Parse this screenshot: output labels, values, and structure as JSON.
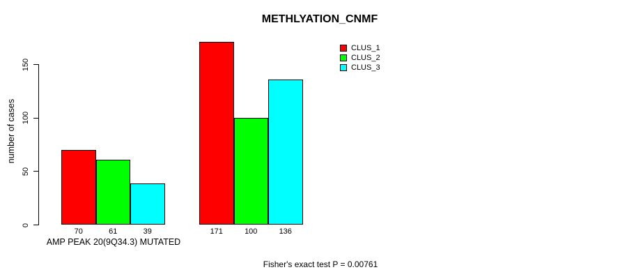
{
  "chart_data": {
    "type": "bar",
    "title": "METHLYATION_CNMF",
    "ylabel": "number of cases",
    "xlabel": "AMP PEAK 20(9Q34.3) MUTATED",
    "yticks": [
      0,
      50,
      100,
      150
    ],
    "ylim": [
      0,
      171
    ],
    "grid": false,
    "legend_position": "top-right",
    "groups": [
      "AMP PEAK 20(9Q34.3) MUTATED",
      ""
    ],
    "series": [
      {
        "name": "CLUS_1",
        "color": "#ff0000",
        "values": [
          70,
          171
        ]
      },
      {
        "name": "CLUS_2",
        "color": "#00ff00",
        "values": [
          61,
          100
        ]
      },
      {
        "name": "CLUS_3",
        "color": "#00ffff",
        "values": [
          39,
          136
        ]
      }
    ],
    "annotation": "Fisher's exact test P = 0.00761"
  }
}
